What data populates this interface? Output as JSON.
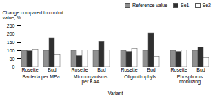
{
  "chart_data": {
    "type": "bar",
    "groups": [
      {
        "label": "Bacteria per MPa",
        "categories": [
          "Rosette",
          "Bud"
        ]
      },
      {
        "label": "Microorganisms\nper KAA",
        "categories": [
          "Rosette",
          "Bud"
        ]
      },
      {
        "label": "Oligonitrophyls",
        "categories": [
          "Rosette",
          "Bud"
        ]
      },
      {
        "label": "Phosphorus\nmobilizing",
        "categories": [
          "Rosette",
          "Bud"
        ]
      }
    ],
    "series": [
      {
        "name": "Reference value",
        "color": "#909090",
        "values": [
          100,
          100,
          100,
          100,
          100,
          100,
          100,
          100
        ]
      },
      {
        "name": "Se1",
        "color": "#303030",
        "values": [
          97,
          175,
          68,
          153,
          93,
          204,
          93,
          119
        ]
      },
      {
        "name": "Se2",
        "color": "#ffffff",
        "values": [
          107,
          73,
          103,
          101,
          110,
          60,
          101,
          57
        ]
      }
    ],
    "ylabel": "Change compared to control\nvalue, %",
    "xlabel": "Variant",
    "ylim": [
      0,
      250
    ],
    "yticks": [
      0,
      50,
      100,
      150,
      200,
      250
    ],
    "legend": "upper right",
    "grid": false
  }
}
